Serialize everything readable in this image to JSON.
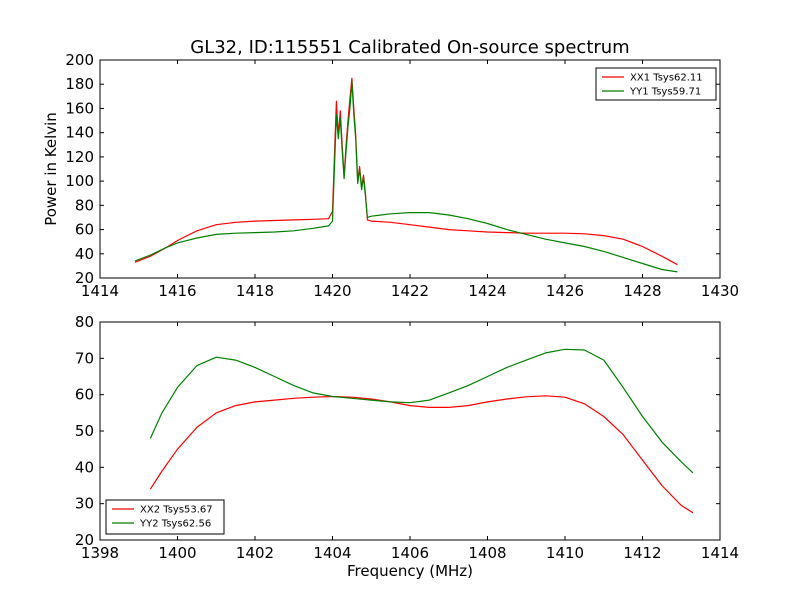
{
  "figure": {
    "title": "GL32, ID:115551 Calibrated On-source spectrum"
  },
  "chart_data": [
    {
      "type": "line",
      "title": "GL32, ID:115551 Calibrated On-source spectrum",
      "xlabel": "",
      "ylabel": "Power in Kelvin",
      "xlim": [
        1414,
        1430
      ],
      "ylim": [
        20,
        200
      ],
      "xticks": [
        "1414",
        "1416",
        "1418",
        "1420",
        "1422",
        "1424",
        "1426",
        "1428",
        "1430"
      ],
      "yticks": [
        "20",
        "40",
        "60",
        "80",
        "100",
        "120",
        "140",
        "160",
        "180",
        "200"
      ],
      "grid": false,
      "legend_position": "top-right",
      "series": [
        {
          "name": "XX1 Tsys62.11",
          "color": "#ff0000",
          "x": [
            1414.9,
            1415.3,
            1415.7,
            1416.0,
            1416.5,
            1417.0,
            1417.5,
            1418.0,
            1418.5,
            1419.0,
            1419.5,
            1419.9,
            1420.0,
            1420.05,
            1420.1,
            1420.15,
            1420.2,
            1420.25,
            1420.3,
            1420.35,
            1420.4,
            1420.45,
            1420.5,
            1420.55,
            1420.6,
            1420.65,
            1420.7,
            1420.75,
            1420.8,
            1420.85,
            1420.9,
            1421.0,
            1421.5,
            1422.0,
            1422.5,
            1423.0,
            1423.5,
            1424.0,
            1424.5,
            1425.0,
            1425.5,
            1426.0,
            1426.5,
            1427.0,
            1427.5,
            1428.0,
            1428.5,
            1428.9
          ],
          "y": [
            33,
            38,
            45,
            51,
            59,
            64,
            66,
            67,
            67.5,
            68,
            68.5,
            69,
            75,
            120,
            166,
            138,
            158,
            130,
            104,
            130,
            150,
            168,
            185,
            160,
            138,
            100,
            112,
            95,
            105,
            90,
            68,
            67,
            66,
            64,
            62,
            60,
            59,
            58,
            57.5,
            57,
            57,
            57,
            56.5,
            55,
            52,
            46,
            38,
            31
          ]
        },
        {
          "name": "YY1 Tsys59.71",
          "color": "#008000",
          "x": [
            1414.9,
            1415.3,
            1415.7,
            1416.0,
            1416.5,
            1417.0,
            1417.5,
            1418.0,
            1418.5,
            1419.0,
            1419.5,
            1419.9,
            1420.0,
            1420.05,
            1420.1,
            1420.15,
            1420.2,
            1420.25,
            1420.3,
            1420.35,
            1420.4,
            1420.45,
            1420.5,
            1420.55,
            1420.6,
            1420.65,
            1420.7,
            1420.75,
            1420.8,
            1420.85,
            1420.9,
            1421.0,
            1421.5,
            1422.0,
            1422.5,
            1423.0,
            1423.5,
            1424.0,
            1424.5,
            1425.0,
            1425.5,
            1426.0,
            1426.5,
            1427.0,
            1427.5,
            1428.0,
            1428.5,
            1428.9
          ],
          "y": [
            34,
            39,
            45,
            49,
            53,
            56,
            57,
            57.5,
            58,
            59,
            61,
            63,
            67,
            110,
            155,
            135,
            152,
            125,
            102,
            125,
            145,
            160,
            182,
            155,
            135,
            98,
            110,
            93,
            103,
            88,
            70,
            71,
            73,
            74,
            74,
            72,
            69,
            65,
            60,
            56,
            52,
            49,
            46,
            42,
            37,
            32,
            27,
            25
          ]
        }
      ]
    },
    {
      "type": "line",
      "title": "",
      "xlabel": "Frequency (MHz)",
      "ylabel": "",
      "xlim": [
        1398,
        1414
      ],
      "ylim": [
        20,
        80
      ],
      "xticks": [
        "1398",
        "1400",
        "1402",
        "1404",
        "1406",
        "1408",
        "1410",
        "1412",
        "1414"
      ],
      "yticks": [
        "20",
        "30",
        "40",
        "50",
        "60",
        "70",
        "80"
      ],
      "grid": false,
      "legend_position": "bottom-left",
      "series": [
        {
          "name": "XX2 Tsys53.67",
          "color": "#ff0000",
          "x": [
            1399.3,
            1399.6,
            1400.0,
            1400.5,
            1401.0,
            1401.5,
            1402.0,
            1402.5,
            1403.0,
            1403.5,
            1404.0,
            1404.5,
            1405.0,
            1405.5,
            1406.0,
            1406.5,
            1407.0,
            1407.5,
            1408.0,
            1408.5,
            1409.0,
            1409.5,
            1410.0,
            1410.5,
            1411.0,
            1411.5,
            1412.0,
            1412.5,
            1413.0,
            1413.3
          ],
          "y": [
            34,
            39,
            45,
            51,
            55,
            57,
            58,
            58.5,
            59,
            59.3,
            59.5,
            59.3,
            58.8,
            58,
            57,
            56.5,
            56.5,
            57,
            58,
            58.8,
            59.4,
            59.7,
            59.3,
            57.5,
            54,
            49,
            42,
            35,
            29.5,
            27.5
          ]
        },
        {
          "name": "YY2 Tsys62.56",
          "color": "#008000",
          "x": [
            1399.3,
            1399.6,
            1400.0,
            1400.5,
            1401.0,
            1401.5,
            1402.0,
            1402.5,
            1403.0,
            1403.5,
            1404.0,
            1404.5,
            1405.0,
            1405.5,
            1406.0,
            1406.5,
            1407.0,
            1407.5,
            1408.0,
            1408.5,
            1409.0,
            1409.5,
            1410.0,
            1410.5,
            1411.0,
            1411.5,
            1412.0,
            1412.5,
            1413.0,
            1413.3
          ],
          "y": [
            48,
            55,
            62,
            68,
            70.3,
            69.5,
            67.5,
            65,
            62.5,
            60.5,
            59.5,
            59,
            58.5,
            58,
            57.8,
            58.5,
            60.5,
            62.5,
            65,
            67.5,
            69.5,
            71.5,
            72.5,
            72.3,
            69.5,
            62,
            54,
            47,
            41.5,
            38.5
          ]
        }
      ]
    }
  ]
}
